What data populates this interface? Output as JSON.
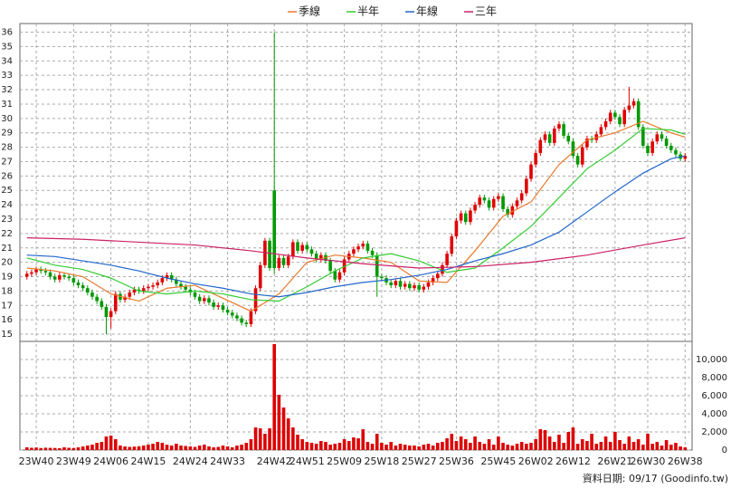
{
  "chart_data": [
    {
      "type": "candlestick",
      "xlim": [
        -1.5,
        142.5
      ],
      "ylim": [
        14.5,
        36.6
      ],
      "yticks": [
        15,
        16,
        17,
        18,
        19,
        20,
        21,
        22,
        23,
        24,
        25,
        26,
        27,
        28,
        29,
        30,
        31,
        32,
        33,
        34,
        35,
        36
      ],
      "grid": true,
      "up_color": "#e00000",
      "down_color": "#009900",
      "open": [
        19.0,
        19.2,
        19.3,
        19.5,
        19.4,
        19.3,
        19.0,
        18.8,
        19.1,
        19.0,
        18.9,
        18.6,
        18.4,
        18.2,
        17.9,
        17.6,
        17.3,
        16.9,
        16.2,
        16.6,
        17.8,
        17.4,
        17.6,
        17.9,
        18.1,
        18.0,
        18.2,
        18.3,
        18.4,
        18.6,
        18.9,
        19.1,
        18.8,
        18.5,
        18.3,
        18.1,
        17.9,
        17.6,
        17.3,
        17.5,
        17.2,
        16.9,
        17.0,
        16.7,
        16.5,
        16.3,
        16.1,
        15.8,
        15.7,
        16.6,
        18.2,
        19.8,
        21.5,
        25.0,
        19.6,
        20.3,
        19.8,
        20.4,
        21.4,
        20.8,
        21.2,
        20.9,
        20.6,
        20.2,
        20.5,
        20.1,
        19.4,
        18.8,
        19.3,
        20.2,
        20.6,
        20.9,
        21.1,
        21.3,
        20.8,
        20.5,
        19.0,
        18.9,
        18.6,
        18.4,
        18.7,
        18.3,
        18.5,
        18.2,
        18.4,
        18.1,
        18.3,
        18.6,
        18.9,
        19.2,
        19.8,
        20.6,
        21.8,
        22.9,
        23.4,
        22.8,
        23.6,
        24.0,
        24.5,
        24.3,
        23.8,
        24.4,
        24.6,
        23.7,
        23.3,
        23.9,
        24.3,
        24.8,
        25.8,
        26.8,
        27.6,
        28.5,
        28.9,
        28.3,
        29.3,
        29.6,
        28.8,
        28.4,
        27.4,
        26.8,
        28.0,
        28.6,
        28.5,
        28.9,
        29.4,
        29.8,
        30.4,
        30.1,
        29.6,
        30.6,
        30.9,
        31.2,
        29.4,
        28.1,
        27.6,
        28.4,
        28.9,
        28.6,
        28.1,
        27.8,
        27.5,
        27.2
      ],
      "high": [
        19.4,
        19.5,
        19.7,
        19.7,
        19.6,
        19.5,
        19.2,
        19.3,
        19.3,
        19.2,
        19.1,
        18.8,
        18.6,
        18.4,
        18.1,
        17.8,
        17.5,
        17.1,
        16.8,
        18.0,
        18.0,
        17.8,
        18.1,
        18.3,
        18.3,
        18.4,
        18.5,
        18.6,
        18.8,
        19.1,
        19.3,
        19.3,
        19.0,
        18.7,
        18.5,
        18.3,
        18.1,
        17.8,
        17.7,
        17.7,
        17.4,
        17.2,
        17.2,
        16.9,
        16.7,
        16.5,
        16.3,
        16.0,
        16.8,
        18.4,
        20.0,
        21.7,
        21.7,
        36.0,
        20.5,
        20.5,
        20.6,
        21.6,
        21.6,
        21.4,
        21.4,
        21.1,
        20.8,
        20.7,
        20.7,
        20.3,
        19.6,
        19.5,
        20.4,
        20.8,
        21.1,
        21.3,
        21.5,
        21.5,
        21.0,
        20.7,
        19.2,
        19.1,
        18.8,
        18.9,
        18.9,
        18.7,
        18.7,
        18.6,
        18.6,
        18.5,
        18.8,
        19.1,
        19.4,
        20.0,
        20.8,
        22.0,
        23.1,
        23.6,
        23.6,
        23.8,
        24.2,
        24.7,
        24.7,
        24.5,
        24.6,
        24.8,
        24.8,
        23.9,
        24.1,
        24.5,
        25.0,
        26.0,
        27.0,
        27.8,
        28.7,
        29.1,
        29.1,
        29.5,
        29.8,
        29.8,
        29.0,
        28.6,
        27.6,
        28.2,
        28.8,
        28.8,
        29.1,
        29.6,
        30.0,
        30.6,
        30.6,
        30.3,
        30.8,
        32.2,
        31.4,
        31.4,
        29.6,
        28.3,
        28.6,
        29.1,
        29.1,
        28.8,
        28.3,
        28.0,
        27.7,
        27.6
      ],
      "low": [
        18.8,
        19.0,
        19.1,
        19.2,
        19.1,
        18.8,
        18.6,
        18.6,
        18.8,
        18.7,
        18.4,
        18.2,
        18.0,
        17.7,
        17.4,
        17.1,
        16.7,
        15.0,
        15.4,
        16.4,
        17.2,
        17.2,
        17.4,
        17.7,
        17.8,
        17.8,
        18.0,
        18.1,
        18.2,
        18.4,
        18.7,
        18.6,
        18.3,
        18.1,
        17.9,
        17.7,
        17.4,
        17.1,
        17.1,
        17.0,
        16.7,
        16.7,
        16.5,
        16.3,
        16.1,
        15.9,
        15.6,
        15.5,
        15.5,
        16.4,
        18.0,
        19.6,
        19.4,
        19.2,
        19.4,
        19.6,
        19.6,
        20.2,
        20.6,
        20.6,
        20.7,
        20.4,
        20.0,
        20.0,
        19.9,
        19.2,
        18.6,
        18.6,
        19.1,
        20.0,
        20.4,
        20.7,
        20.9,
        20.6,
        20.3,
        17.6,
        18.7,
        18.4,
        18.2,
        18.2,
        18.1,
        18.1,
        18.0,
        18.0,
        17.9,
        17.9,
        18.1,
        18.4,
        18.7,
        19.0,
        19.6,
        20.4,
        21.6,
        22.7,
        22.6,
        22.6,
        23.4,
        23.8,
        24.1,
        23.6,
        23.6,
        24.2,
        23.5,
        23.1,
        23.1,
        23.7,
        24.1,
        24.6,
        25.6,
        26.6,
        27.4,
        28.3,
        28.1,
        28.1,
        29.1,
        28.6,
        28.2,
        27.2,
        26.6,
        26.6,
        27.8,
        28.3,
        28.3,
        28.7,
        29.2,
        29.6,
        29.9,
        29.4,
        29.4,
        30.4,
        30.7,
        29.2,
        27.9,
        27.4,
        27.4,
        28.2,
        28.4,
        27.9,
        27.6,
        27.3,
        27.0,
        27.0
      ],
      "close": [
        19.2,
        19.3,
        19.5,
        19.4,
        19.3,
        19.0,
        18.8,
        19.1,
        19.0,
        18.9,
        18.6,
        18.4,
        18.2,
        17.9,
        17.6,
        17.3,
        16.9,
        16.2,
        16.6,
        17.8,
        17.4,
        17.6,
        17.9,
        18.1,
        18.0,
        18.2,
        18.3,
        18.4,
        18.6,
        18.9,
        19.1,
        18.8,
        18.5,
        18.3,
        18.1,
        17.9,
        17.6,
        17.3,
        17.5,
        17.2,
        16.9,
        17.0,
        16.7,
        16.5,
        16.3,
        16.1,
        15.8,
        15.7,
        16.6,
        18.2,
        19.8,
        21.5,
        19.6,
        19.6,
        20.3,
        19.8,
        20.4,
        21.4,
        20.8,
        21.2,
        20.9,
        20.6,
        20.2,
        20.5,
        20.1,
        19.4,
        18.8,
        19.3,
        20.2,
        20.6,
        20.9,
        21.1,
        21.3,
        20.8,
        20.5,
        19.0,
        18.9,
        18.6,
        18.4,
        18.7,
        18.3,
        18.5,
        18.2,
        18.4,
        18.1,
        18.3,
        18.6,
        18.9,
        19.2,
        19.8,
        20.6,
        21.8,
        22.9,
        23.4,
        22.8,
        23.6,
        24.0,
        24.5,
        24.3,
        23.8,
        24.4,
        24.6,
        23.7,
        23.3,
        23.9,
        24.3,
        24.8,
        25.8,
        26.8,
        27.6,
        28.5,
        28.9,
        28.3,
        29.3,
        29.6,
        28.8,
        28.4,
        27.4,
        26.8,
        28.0,
        28.6,
        28.5,
        28.9,
        29.4,
        29.8,
        30.4,
        30.1,
        29.6,
        30.6,
        30.9,
        31.2,
        29.4,
        28.1,
        27.6,
        28.4,
        28.9,
        28.6,
        28.1,
        27.8,
        27.5,
        27.2,
        27.4
      ],
      "series": [
        {
          "name": "季線",
          "color": "#e8782a",
          "x": [
            0,
            6,
            12,
            18,
            24,
            30,
            36,
            42,
            48,
            54,
            60,
            66,
            72,
            78,
            84,
            90,
            96,
            102,
            108,
            114,
            120,
            126,
            132,
            138,
            141
          ],
          "values": [
            19.6,
            19.4,
            19.0,
            17.8,
            17.3,
            18.2,
            18.4,
            17.5,
            16.6,
            17.8,
            20.0,
            20.5,
            20.3,
            20.0,
            18.7,
            18.6,
            20.8,
            23.2,
            24.2,
            26.8,
            28.5,
            29.0,
            29.8,
            29.0,
            28.7
          ]
        },
        {
          "name": "半年",
          "color": "#33cc33",
          "x": [
            0,
            6,
            12,
            18,
            24,
            30,
            36,
            42,
            48,
            54,
            60,
            66,
            72,
            78,
            84,
            90,
            96,
            102,
            108,
            114,
            120,
            126,
            132,
            138,
            141
          ],
          "values": [
            20.3,
            19.8,
            19.5,
            18.9,
            18.0,
            17.8,
            18.0,
            17.8,
            17.4,
            17.3,
            18.3,
            19.4,
            20.3,
            20.6,
            20.1,
            19.3,
            19.6,
            21.0,
            22.5,
            24.5,
            26.5,
            27.8,
            29.3,
            29.2,
            28.9
          ]
        },
        {
          "name": "年線",
          "color": "#2266cc",
          "x": [
            0,
            6,
            12,
            18,
            24,
            30,
            36,
            42,
            48,
            54,
            60,
            66,
            72,
            78,
            84,
            90,
            96,
            102,
            108,
            114,
            120,
            126,
            132,
            138,
            141
          ],
          "values": [
            20.5,
            20.4,
            20.1,
            19.8,
            19.4,
            18.9,
            18.5,
            18.2,
            17.8,
            17.6,
            17.9,
            18.3,
            18.6,
            18.8,
            19.1,
            19.5,
            20.1,
            20.6,
            21.2,
            22.1,
            23.5,
            24.9,
            26.2,
            27.2,
            27.4
          ]
        },
        {
          "name": "三年",
          "color": "#cc2266",
          "x": [
            0,
            12,
            24,
            36,
            48,
            60,
            72,
            84,
            96,
            108,
            120,
            132,
            141
          ],
          "values": [
            21.7,
            21.6,
            21.4,
            21.2,
            20.8,
            20.3,
            19.9,
            19.6,
            19.7,
            20.0,
            20.5,
            21.2,
            21.7
          ]
        }
      ]
    },
    {
      "type": "bar",
      "color": "#dd0000",
      "xlim": [
        -1.5,
        142.5
      ],
      "ylim": [
        0,
        12000
      ],
      "yticks": [
        0,
        {
          "value": 2000,
          "label": "2,000"
        },
        {
          "value": 4000,
          "label": "4,000"
        },
        {
          "value": 6000,
          "label": "6,000"
        },
        {
          "value": 8000,
          "label": "8,000"
        },
        {
          "value": 10000,
          "label": "10,000"
        }
      ],
      "xticks": [
        {
          "value": 2,
          "label": "23W40"
        },
        {
          "value": 10,
          "label": "23W49"
        },
        {
          "value": 18,
          "label": "24W06"
        },
        {
          "value": 26,
          "label": "24W15"
        },
        {
          "value": 35,
          "label": "24W24"
        },
        {
          "value": 43,
          "label": "24W33"
        },
        {
          "value": 53,
          "label": "24W42"
        },
        {
          "value": 60,
          "label": "24W51"
        },
        {
          "value": 68,
          "label": "25W09"
        },
        {
          "value": 76,
          "label": "25W18"
        },
        {
          "value": 84,
          "label": "25W27"
        },
        {
          "value": 92,
          "label": "25W36"
        },
        {
          "value": 101,
          "label": "25W45"
        },
        {
          "value": 109,
          "label": "26W02"
        },
        {
          "value": 117,
          "label": "26W12"
        },
        {
          "value": 126,
          "label": "26W21"
        },
        {
          "value": 133,
          "label": "26W30"
        },
        {
          "value": 141,
          "label": "26W38"
        }
      ],
      "grid": true,
      "values": [
        300,
        250,
        280,
        220,
        260,
        240,
        230,
        200,
        300,
        250,
        220,
        300,
        400,
        500,
        600,
        800,
        900,
        1500,
        1600,
        1200,
        500,
        400,
        350,
        380,
        420,
        500,
        600,
        700,
        900,
        800,
        600,
        500,
        700,
        500,
        450,
        400,
        350,
        500,
        600,
        400,
        300,
        350,
        500,
        400,
        300,
        500,
        600,
        800,
        1200,
        2500,
        2400,
        1800,
        2400,
        11700,
        6100,
        4700,
        3500,
        2500,
        1700,
        1200,
        900,
        800,
        700,
        1000,
        900,
        600,
        700,
        800,
        1200,
        1000,
        1400,
        1300,
        2300,
        900,
        700,
        1800,
        800,
        600,
        900,
        500,
        700,
        600,
        500,
        500,
        400,
        600,
        700,
        500,
        800,
        900,
        1300,
        1800,
        1000,
        1500,
        1200,
        800,
        1500,
        900,
        700,
        1200,
        600,
        1500,
        800,
        600,
        500,
        700,
        900,
        700,
        800,
        1200,
        2300,
        2200,
        1500,
        900,
        1700,
        800,
        2000,
        2500,
        700,
        1200,
        1000,
        1800,
        700,
        900,
        1500,
        900,
        2000,
        1100,
        700,
        1500,
        900,
        1200,
        600,
        1800,
        700,
        900,
        500,
        1100,
        600,
        800,
        400,
        300
      ]
    }
  ],
  "footer": "資料日期: 09/17 (Goodinfo.tw)"
}
